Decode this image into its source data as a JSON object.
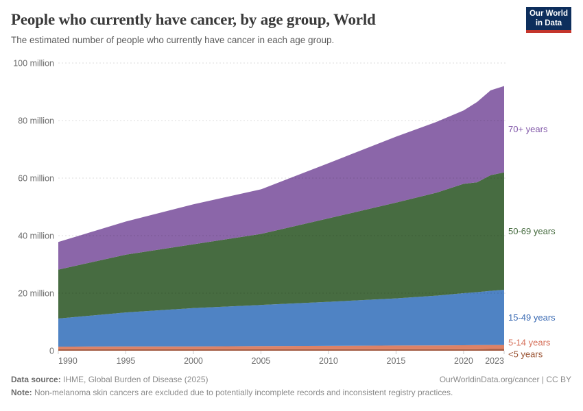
{
  "header": {
    "title": "People who currently have cancer, by age group, World",
    "subtitle": "The estimated number of people who currently have cancer in each age group.",
    "logo": {
      "line1": "Our World",
      "line2": "in Data",
      "bg_color": "#0d2e5c",
      "bar_color": "#c4352c"
    }
  },
  "chart_data": {
    "type": "area",
    "stacked": true,
    "title": "People who currently have cancer, by age group, World",
    "x": [
      1990,
      1995,
      2000,
      2005,
      2010,
      2015,
      2018,
      2020,
      2021,
      2022,
      2023
    ],
    "series": [
      {
        "name": "<5 years",
        "color": "#A25C44",
        "label_color": "#9B5434",
        "values": [
          0.5,
          0.5,
          0.5,
          0.5,
          0.5,
          0.5,
          0.5,
          0.5,
          0.55,
          0.6,
          0.6
        ]
      },
      {
        "name": "5-14 years",
        "color": "#DD8266",
        "label_color": "#D6705A",
        "values": [
          0.9,
          1.0,
          1.0,
          1.1,
          1.2,
          1.3,
          1.35,
          1.4,
          1.4,
          1.4,
          1.4
        ]
      },
      {
        "name": "15-49 years",
        "color": "#4F83C4",
        "label_color": "#3D6CB4",
        "values": [
          9.8,
          11.8,
          13.3,
          14.3,
          15.3,
          16.4,
          17.3,
          18.1,
          18.4,
          18.8,
          19.2
        ]
      },
      {
        "name": "50-69 years",
        "color": "#476C41",
        "label_color": "#43693C",
        "values": [
          17.0,
          20.1,
          22.2,
          24.7,
          29.0,
          33.3,
          35.8,
          38.0,
          38.2,
          40.2,
          40.8
        ]
      },
      {
        "name": "70+ years",
        "color": "#8B66A9",
        "label_color": "#8157A8",
        "values": [
          9.6,
          11.5,
          13.9,
          15.5,
          19.2,
          22.9,
          24.6,
          25.5,
          27.9,
          29.5,
          30.0
        ]
      }
    ],
    "xticks": [
      1990,
      1995,
      2000,
      2005,
      2010,
      2015,
      2020,
      2023
    ],
    "yticks": [
      {
        "v": 0,
        "label": "0"
      },
      {
        "v": 20,
        "label": "20 million"
      },
      {
        "v": 40,
        "label": "40 million"
      },
      {
        "v": 60,
        "label": "60 million"
      },
      {
        "v": 80,
        "label": "80 million"
      },
      {
        "v": 100,
        "label": "100 million"
      }
    ],
    "ylim": [
      0,
      100
    ],
    "xlim": [
      1990,
      2023
    ],
    "grid": "dashed-horizontal",
    "legend_position": "right-edge-labels"
  },
  "footer": {
    "source_label": "Data source:",
    "source_value": "IHME, Global Burden of Disease (2025)",
    "link": "OurWorldinData.org/cancer",
    "license": "| CC BY",
    "note_label": "Note:",
    "note_value": "Non-melanoma skin cancers are excluded due to potentially incomplete records and inconsistent registry practices."
  }
}
